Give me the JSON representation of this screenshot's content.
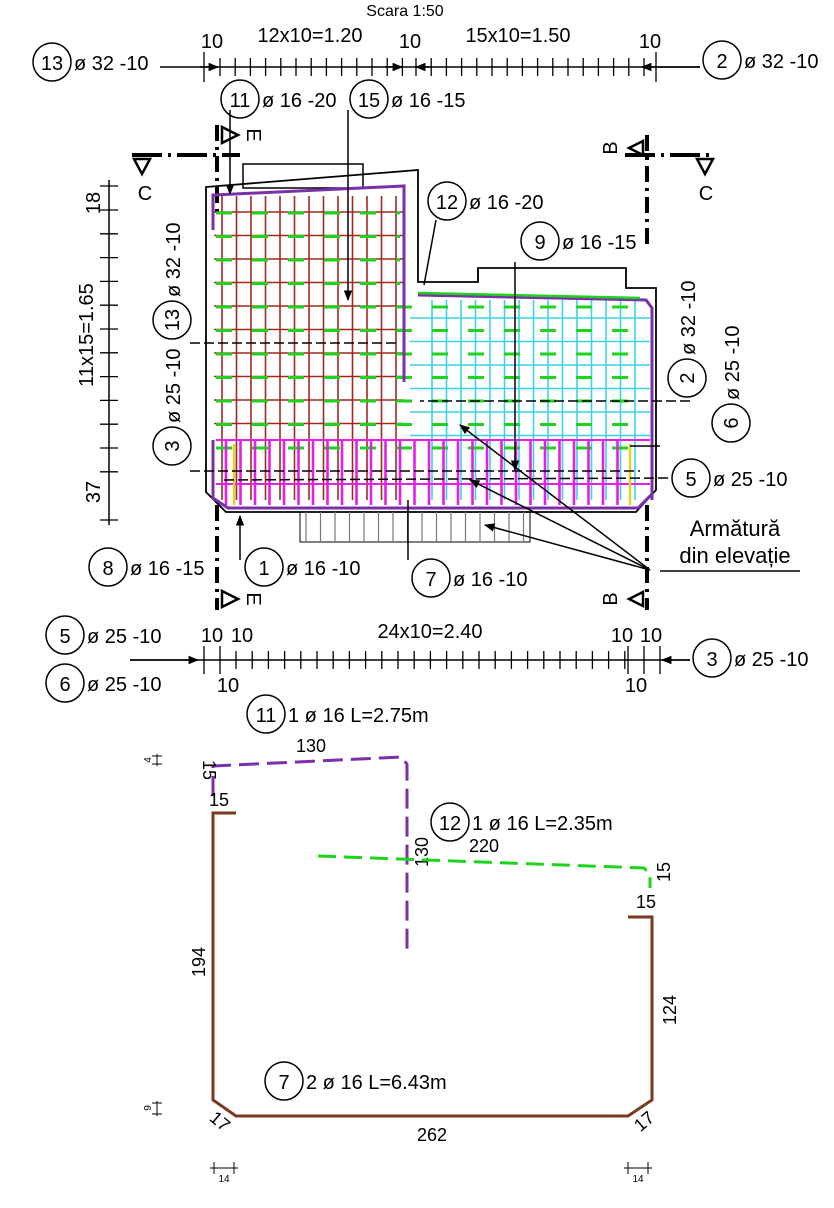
{
  "scale_title": "Scara 1:50",
  "top_dims": {
    "left_edge": "10",
    "span_a": "12x10=1.20",
    "middle": "10",
    "span_b": "15x10=1.50",
    "right_edge": "10"
  },
  "left_dims": {
    "top": "18",
    "span": "11x15=1.65",
    "bottom": "37"
  },
  "bottom_dims": {
    "left_a": "10",
    "left_b": "10",
    "span": "24x10=2.40",
    "right_a": "10",
    "right_b": "10",
    "below_left": "10",
    "below_right": "10"
  },
  "marks": {
    "m13_top": {
      "num": "13",
      "text": "ø 32 -10"
    },
    "m2_top": {
      "num": "2",
      "text": "ø 32 -10"
    },
    "m11": {
      "num": "11",
      "text": "ø 16 -20"
    },
    "m15": {
      "num": "15",
      "text": "ø 16 -15"
    },
    "m12": {
      "num": "12",
      "text": "ø 16 -20"
    },
    "m9": {
      "num": "9",
      "text": "ø 16 -15"
    },
    "m13_side": {
      "num": "13",
      "text": "ø 32 -10"
    },
    "m3_side": {
      "num": "3",
      "text": "ø 25 -10"
    },
    "m2_side": {
      "num": "2",
      "text": "ø 32 -10"
    },
    "m6_side": {
      "num": "6",
      "text": "ø 25 -10"
    },
    "m5_side": {
      "num": "5",
      "text": "ø 25 -10"
    },
    "m8": {
      "num": "8",
      "text": "ø 16 -15"
    },
    "m1": {
      "num": "1",
      "text": "ø 16 -10"
    },
    "m7": {
      "num": "7",
      "text": "ø 16 -10"
    },
    "m5_bot": {
      "num": "5",
      "text": "ø 25 -10"
    },
    "m6_bot": {
      "num": "6",
      "text": "ø 25 -10"
    },
    "m3_bot": {
      "num": "3",
      "text": "ø 25 -10"
    }
  },
  "note_line1": "Armătură",
  "note_line2": "din elevație",
  "section_labels": {
    "c": "C",
    "b": "B",
    "e": "E"
  },
  "bars": {
    "b11": {
      "num": "11",
      "text": "1 ø 16 L=2.75m",
      "d_top": "130",
      "d_left": "15",
      "d_hook": "15",
      "d_right": "130",
      "d_tick": "4"
    },
    "b12": {
      "num": "12",
      "text": "1 ø 16 L=2.35m",
      "d_main": "220",
      "d_end": "15",
      "d_end2": "15"
    },
    "b7": {
      "num": "7",
      "text": "2 ø 16 L=6.43m",
      "d_left": "194",
      "d_right": "124",
      "d_bottom": "262",
      "d_corner_l": "17",
      "d_corner_r": "17",
      "d_tick": "9",
      "d_bl": "14",
      "d_br": "14"
    }
  },
  "colors": {
    "purple": "#7b2fa8",
    "green": "#1ed21e",
    "red": "#a0281e",
    "cyan": "#3cd2e6",
    "magenta": "#e61ee6",
    "yellow": "#e6d21e",
    "brown": "#7a3a22",
    "black": "#000000",
    "grey": "#787878"
  }
}
